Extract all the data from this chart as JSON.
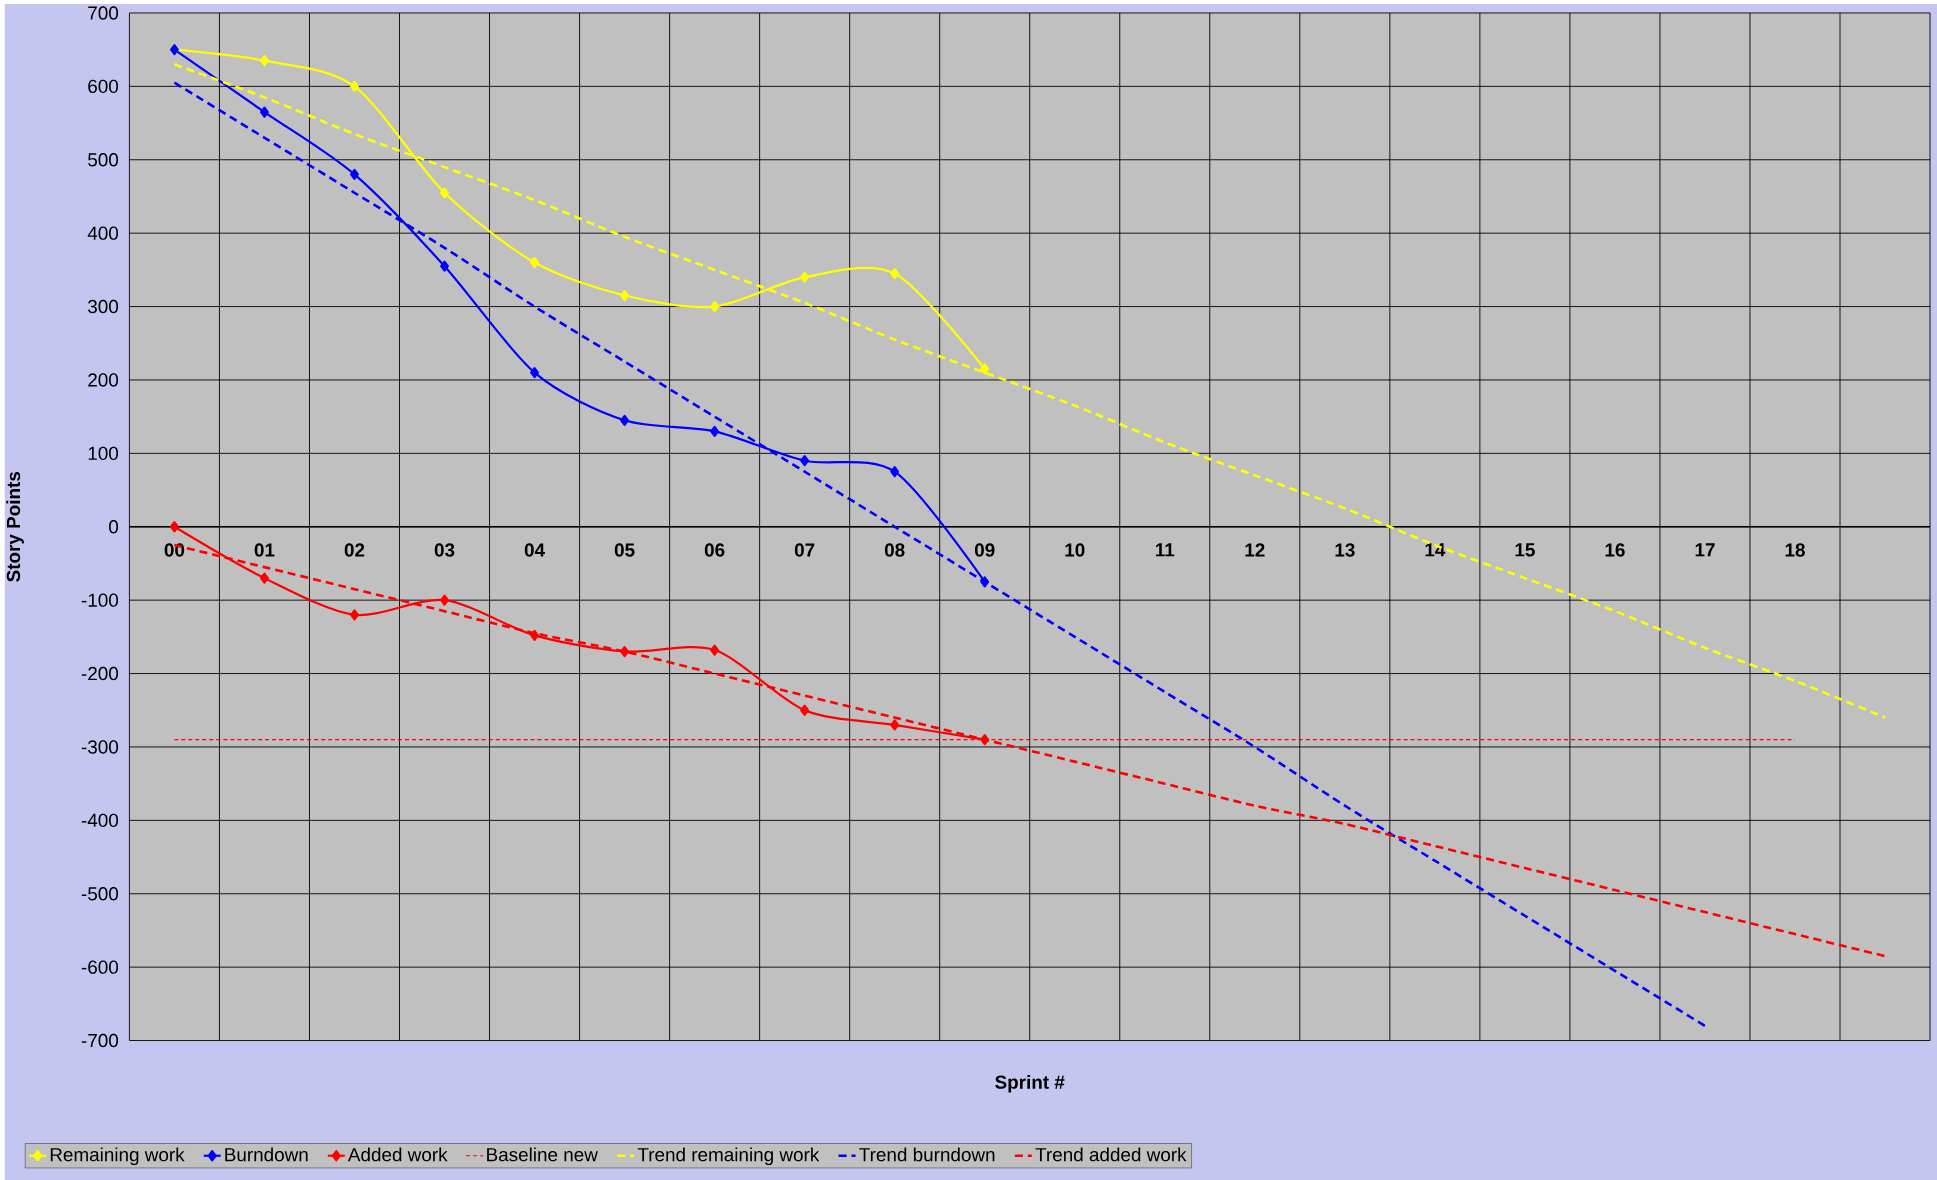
{
  "chart_data": {
    "type": "line",
    "xlabel": "Sprint #",
    "ylabel": "Story Points",
    "categories": [
      "00",
      "01",
      "02",
      "03",
      "04",
      "05",
      "06",
      "07",
      "08",
      "09",
      "10",
      "11",
      "12",
      "13",
      "14",
      "15",
      "16",
      "17",
      "18",
      null
    ],
    "ylim": [
      -700,
      700
    ],
    "yticks": [
      -700,
      -600,
      -500,
      -400,
      -300,
      -200,
      -100,
      0,
      100,
      200,
      300,
      400,
      500,
      600,
      700
    ],
    "grid": true,
    "legend": "bottom",
    "series": [
      {
        "name": "Remaining work",
        "color": "#ffff00",
        "marker": "diamond",
        "line_style": "solid",
        "values": [
          650,
          635,
          600,
          455,
          360,
          315,
          300,
          340,
          345,
          215,
          null,
          null,
          null,
          null,
          null,
          null,
          null,
          null,
          null,
          null
        ]
      },
      {
        "name": "Burndown",
        "color": "#0000ff",
        "marker": "diamond",
        "line_style": "solid",
        "values": [
          650,
          565,
          480,
          355,
          210,
          145,
          130,
          90,
          75,
          -75,
          null,
          null,
          null,
          null,
          null,
          null,
          null,
          null,
          null,
          null
        ]
      },
      {
        "name": "Added work",
        "color": "#ff0000",
        "marker": "diamond",
        "line_style": "solid",
        "values": [
          0,
          -70,
          -120,
          -100,
          -148,
          -170,
          -168,
          -250,
          -270,
          -290,
          null,
          null,
          null,
          null,
          null,
          null,
          null,
          null,
          null,
          null
        ]
      },
      {
        "name": "Baseline new",
        "color": "#ff0000",
        "marker": "none",
        "line_style": "dotted",
        "values": [
          -290,
          -290,
          -290,
          -290,
          -290,
          -290,
          -290,
          -290,
          -290,
          -290,
          -290,
          -290,
          -290,
          -290,
          -290,
          -290,
          -290,
          -290,
          -290,
          null
        ]
      },
      {
        "name": "Trend remaining work",
        "color": "#ffff00",
        "marker": "none",
        "line_style": "dashed",
        "values": [
          630,
          585,
          535,
          490,
          445,
          395,
          350,
          305,
          255,
          210,
          165,
          115,
          70,
          25,
          -25,
          -70,
          -115,
          -165,
          -210,
          -260
        ]
      },
      {
        "name": "Trend burndown",
        "color": "#0000ff",
        "marker": "none",
        "line_style": "dashed",
        "values": [
          605,
          530,
          455,
          380,
          300,
          225,
          150,
          75,
          0,
          -75,
          -150,
          -225,
          -300,
          -380,
          -455,
          -530,
          -605,
          -680,
          null,
          null
        ]
      },
      {
        "name": "Trend added work",
        "color": "#ff0000",
        "marker": "none",
        "line_style": "dashed",
        "values": [
          -25,
          -55,
          -85,
          -115,
          -145,
          -170,
          -200,
          -230,
          -260,
          -290,
          -320,
          -350,
          -380,
          -405,
          -435,
          -465,
          -495,
          -525,
          -555,
          -585
        ]
      }
    ]
  }
}
